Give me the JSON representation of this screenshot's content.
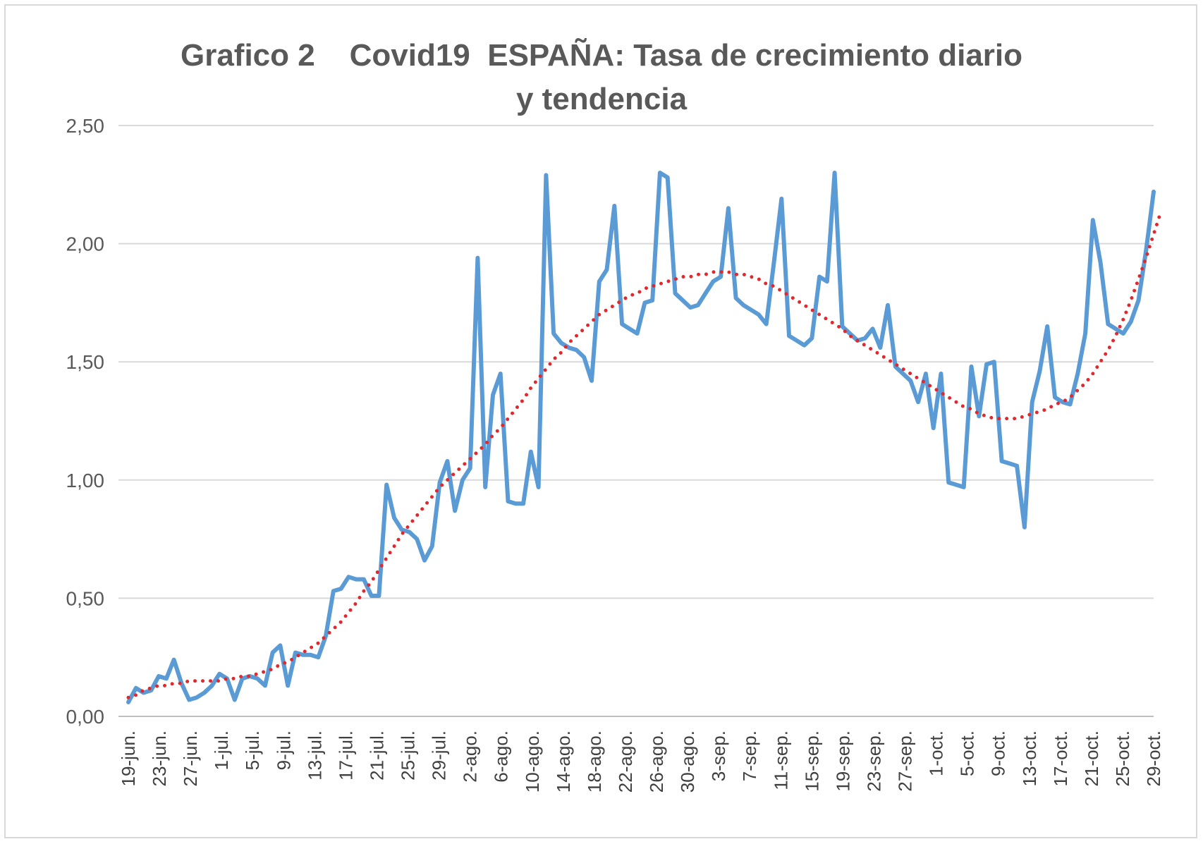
{
  "chart_data": {
    "type": "line",
    "title_line1": "Grafico 2    Covid19  ESPAÑA: Tasa de crecimiento diario",
    "title_line2": "y tendencia",
    "ylim": [
      0,
      2.5
    ],
    "y_ticks": [
      "0,00",
      "0,50",
      "1,00",
      "1,50",
      "2,00",
      "2,50"
    ],
    "grid": true,
    "legend": "none",
    "x_tick_labels": [
      "19-jun.",
      "23-jun.",
      "27-jun.",
      "1-jul.",
      "5-jul.",
      "9-jul.",
      "13-jul.",
      "17-jul.",
      "21-jul.",
      "25-jul.",
      "29-jul.",
      "2-ago.",
      "6-ago.",
      "10-ago.",
      "14-ago.",
      "18-ago.",
      "22-ago.",
      "26-ago.",
      "30-ago.",
      "3-sep.",
      "7-sep.",
      "11-sep.",
      "15-sep.",
      "19-sep.",
      "23-sep.",
      "27-sep.",
      "1-oct.",
      "5-oct.",
      "9-oct.",
      "13-oct.",
      "17-oct.",
      "21-oct.",
      "25-oct.",
      "29-oct."
    ],
    "series": [
      {
        "color": "#5b9bd5",
        "style": "solid",
        "values": [
          0.06,
          0.12,
          0.1,
          0.11,
          0.17,
          0.16,
          0.24,
          0.14,
          0.07,
          0.08,
          0.1,
          0.13,
          0.18,
          0.16,
          0.07,
          0.16,
          0.17,
          0.16,
          0.13,
          0.27,
          0.3,
          0.13,
          0.27,
          0.26,
          0.26,
          0.25,
          0.34,
          0.53,
          0.54,
          0.59,
          0.58,
          0.58,
          0.51,
          0.51,
          0.98,
          0.84,
          0.79,
          0.78,
          0.75,
          0.66,
          0.72,
          0.99,
          1.08,
          0.87,
          1.0,
          1.05,
          1.94,
          0.97,
          1.36,
          1.45,
          0.91,
          0.9,
          0.9,
          1.12,
          0.97,
          2.29,
          1.62,
          1.58,
          1.56,
          1.55,
          1.52,
          1.42,
          1.84,
          1.89,
          2.16,
          1.66,
          1.64,
          1.62,
          1.75,
          1.76,
          2.3,
          2.28,
          1.79,
          1.76,
          1.73,
          1.74,
          1.79,
          1.84,
          1.86,
          2.15,
          1.77,
          1.74,
          1.72,
          1.7,
          1.66,
          1.92,
          2.19,
          1.61,
          1.59,
          1.57,
          1.6,
          1.86,
          1.84,
          2.3,
          1.65,
          1.62,
          1.59,
          1.6,
          1.64,
          1.56,
          1.74,
          1.48,
          1.45,
          1.42,
          1.33,
          1.45,
          1.22,
          1.45,
          0.99,
          0.98,
          0.97,
          1.48,
          1.27,
          1.49,
          1.5,
          1.08,
          1.07,
          1.06,
          0.8,
          1.33,
          1.46,
          1.65,
          1.35,
          1.33,
          1.32,
          1.45,
          1.62,
          2.1,
          1.92,
          1.66,
          1.64,
          1.62,
          1.67,
          1.76,
          1.97,
          2.22
        ]
      },
      {
        "color": "#e0282e",
        "style": "dotted",
        "values": [
          0.08,
          0.09,
          0.11,
          0.12,
          0.13,
          0.13,
          0.14,
          0.14,
          0.15,
          0.15,
          0.15,
          0.15,
          0.15,
          0.16,
          0.16,
          0.17,
          0.17,
          0.18,
          0.19,
          0.2,
          0.22,
          0.23,
          0.25,
          0.27,
          0.29,
          0.31,
          0.34,
          0.37,
          0.4,
          0.44,
          0.48,
          0.53,
          0.57,
          0.62,
          0.67,
          0.72,
          0.77,
          0.81,
          0.85,
          0.89,
          0.93,
          0.97,
          1.0,
          1.03,
          1.06,
          1.09,
          1.12,
          1.15,
          1.19,
          1.22,
          1.26,
          1.3,
          1.34,
          1.39,
          1.43,
          1.47,
          1.51,
          1.54,
          1.58,
          1.61,
          1.64,
          1.67,
          1.7,
          1.72,
          1.74,
          1.76,
          1.78,
          1.79,
          1.81,
          1.82,
          1.83,
          1.84,
          1.85,
          1.86,
          1.86,
          1.87,
          1.87,
          1.88,
          1.88,
          1.88,
          1.87,
          1.87,
          1.86,
          1.85,
          1.83,
          1.82,
          1.8,
          1.78,
          1.76,
          1.74,
          1.72,
          1.7,
          1.68,
          1.66,
          1.64,
          1.61,
          1.59,
          1.57,
          1.55,
          1.53,
          1.51,
          1.49,
          1.47,
          1.45,
          1.43,
          1.41,
          1.39,
          1.37,
          1.35,
          1.33,
          1.31,
          1.3,
          1.28,
          1.27,
          1.26,
          1.26,
          1.26,
          1.26,
          1.27,
          1.28,
          1.29,
          1.3,
          1.32,
          1.33,
          1.35,
          1.38,
          1.41,
          1.45,
          1.5,
          1.55,
          1.61,
          1.68,
          1.76,
          1.85,
          1.94,
          2.04,
          2.14
        ]
      }
    ]
  }
}
